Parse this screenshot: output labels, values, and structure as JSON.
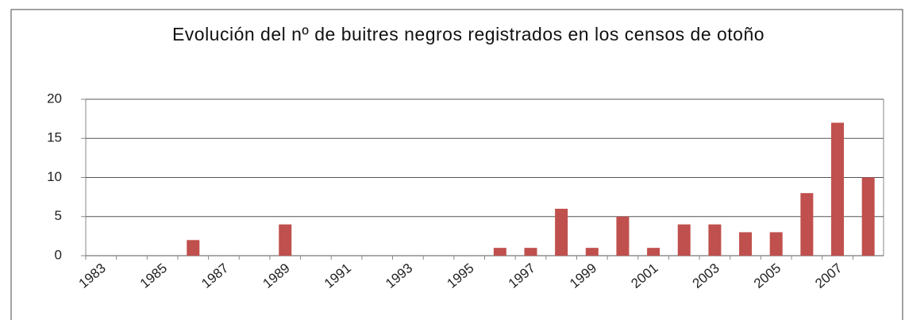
{
  "chart_data": {
    "type": "bar",
    "title": "Evolución del nº de buitres negros registrados en los censos de otoño",
    "categories": [
      "1983",
      null,
      "1985",
      null,
      "1987",
      null,
      "1989",
      null,
      "1991",
      null,
      "1993",
      null,
      "1995",
      null,
      "1997",
      null,
      "1999",
      null,
      "2001",
      null,
      "2003",
      null,
      "2005",
      null,
      "2007",
      null
    ],
    "values": [
      0,
      0,
      0,
      2,
      0,
      0,
      4,
      0,
      0,
      0,
      0,
      0,
      0,
      1,
      1,
      6,
      1,
      5,
      1,
      4,
      4,
      3,
      3,
      8,
      17,
      10
    ],
    "color": "#c0504d",
    "ylim": [
      0,
      20
    ],
    "yticks": [
      0,
      5,
      10,
      15,
      20
    ],
    "grid": true
  }
}
